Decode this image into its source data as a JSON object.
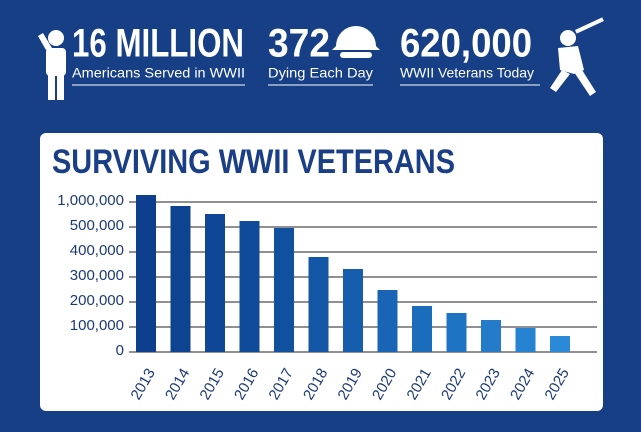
{
  "stats": [
    {
      "big": "16 MILLION",
      "small": "Americans Served in WWII"
    },
    {
      "big": "372",
      "small": "Dying Each Day"
    },
    {
      "big": "620,000",
      "small": "WWII Veterans Today"
    }
  ],
  "chart_data": {
    "type": "bar",
    "title": "SURVIVING WWII VETERANS",
    "categories": [
      "2013",
      "2014",
      "2015",
      "2016",
      "2017",
      "2018",
      "2019",
      "2020",
      "2021",
      "2022",
      "2023",
      "2024",
      "2025"
    ],
    "values": [
      1140000,
      920000,
      760000,
      620000,
      496000,
      380000,
      332000,
      248000,
      184000,
      156000,
      128000,
      96000,
      64000
    ],
    "colors": [
      "#0d3f8e",
      "#0e4392",
      "#0f4796",
      "#104b9a",
      "#11509f",
      "#1456a6",
      "#165dad",
      "#1964b4",
      "#1c6cbc",
      "#1f73c3",
      "#237bca",
      "#2683d1",
      "#2a8ad7"
    ],
    "yticks": [
      0,
      {
        "value": 100000,
        "label": "100,000"
      },
      {
        "value": 200000,
        "label": "200,000"
      },
      {
        "value": 300000,
        "label": "300,000"
      },
      {
        "value": 400000,
        "label": "400,000"
      },
      {
        "value": 500000,
        "label": "500,000"
      },
      {
        "value": 1000000,
        "label": "1,000,000"
      }
    ],
    "grid": true
  }
}
